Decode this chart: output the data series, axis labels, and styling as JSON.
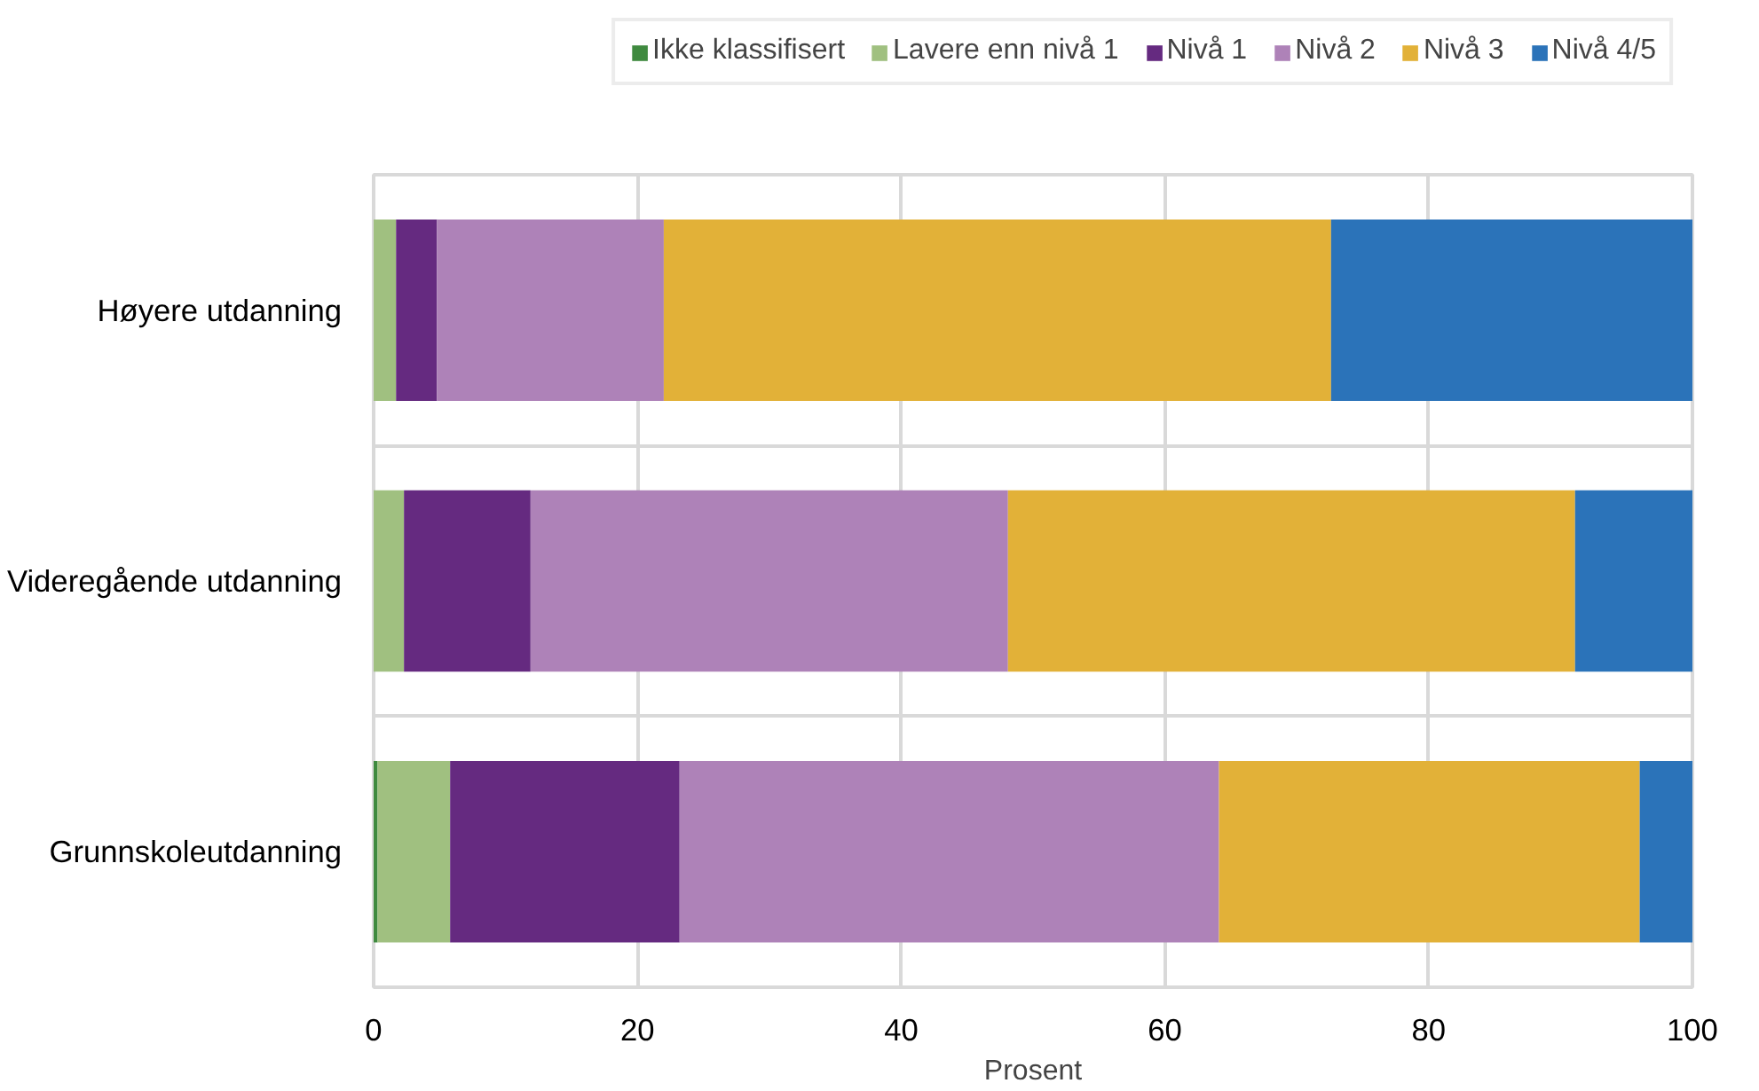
{
  "chart_data": {
    "type": "bar",
    "orientation": "horizontal",
    "stacked": true,
    "categories": [
      "Høyere utdanning",
      "Videregående utdanning",
      "Grunnskoleutdanning"
    ],
    "series": [
      {
        "name": "Ikke klassifisert",
        "color": "#3f8a3f",
        "values": [
          0,
          0,
          0.3
        ]
      },
      {
        "name": "Lavere enn nivå 1",
        "color": "#a0c080",
        "values": [
          1.7,
          2.3,
          5.5
        ]
      },
      {
        "name": "Nivå 1",
        "color": "#652a80",
        "values": [
          3.1,
          9.6,
          17.4
        ]
      },
      {
        "name": "Nivå 2",
        "color": "#ae82b8",
        "values": [
          17.2,
          36.2,
          40.9
        ]
      },
      {
        "name": "Nivå 3",
        "color": "#e2b138",
        "values": [
          50.6,
          43.0,
          31.9
        ]
      },
      {
        "name": "Nivå 4/5",
        "color": "#2b73b9",
        "values": [
          27.4,
          8.9,
          4.0
        ]
      }
    ],
    "xlabel": "Prosent",
    "xlim": [
      0,
      100
    ],
    "xticks": [
      0,
      20,
      40,
      60,
      80,
      100
    ],
    "grid": true,
    "legend": "top"
  }
}
